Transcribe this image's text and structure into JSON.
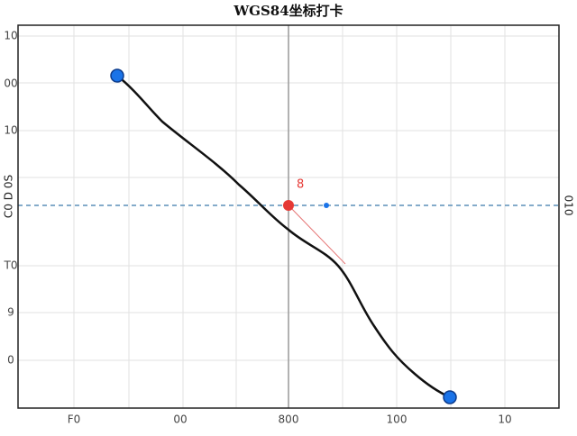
{
  "title": "WGS84坐标打卡",
  "x_tick_labels": [
    "F0",
    "00",
    "800",
    "100",
    "10"
  ],
  "y_tick_labels": [
    "10",
    "00",
    "10",
    "T0",
    "9",
    "0"
  ],
  "left_axis_label": "C0 D 0S",
  "right_axis_label": "010",
  "marker_label": "8"
}
